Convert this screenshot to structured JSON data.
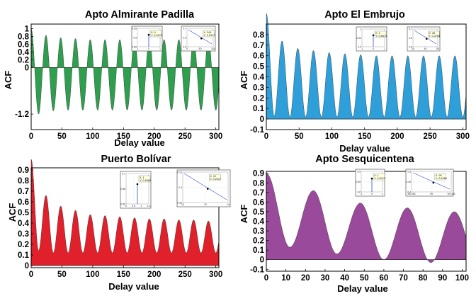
{
  "chart_data": [
    {
      "type": "area",
      "title": "Apto Almirante Padilla",
      "xlabel": "Delay value",
      "ylabel": "ACF",
      "xlim": [
        0,
        305
      ],
      "ylim": [
        -1.6,
        1.12
      ],
      "x_ticks": [
        0,
        50,
        100,
        150,
        200,
        250,
        300
      ],
      "y_ticks": [
        {
          "v": 1,
          "t": "1"
        },
        {
          "v": 0.8,
          "t": "0.8"
        },
        {
          "v": 0.6,
          "t": "0.6"
        },
        {
          "v": 0.4,
          "t": "0.4"
        },
        {
          "v": 0.2,
          "t": "0.2"
        },
        {
          "v": 0,
          "t": "0"
        },
        {
          "v": -1.2,
          "t": "-1.2"
        }
      ],
      "color": "#2f9e4f",
      "period": 24,
      "first_peak": 24,
      "peaks": [
        0.83,
        0.77,
        0.75,
        0.72,
        0.72,
        0.72,
        0.72,
        0.72,
        0.72,
        0.72,
        0.72,
        0.72
      ],
      "troughs": [
        -1.2,
        -1.12,
        -1.1,
        -1.1,
        -1.1,
        -1.1,
        -1.1,
        -1.1,
        -1.1,
        -1.1,
        -1.1,
        -1.1,
        -1.1
      ],
      "insets": [
        {
          "x_ticks": [
            "-1",
            "0",
            "1"
          ],
          "y_ticks": [
            "0.85",
            "0.9",
            "0.95"
          ],
          "label_x": "X: 0",
          "label_y": "Y: 0.9974"
        },
        {
          "x_ticks": [
            "0",
            "50",
            "100"
          ],
          "y_ticks": [
            "0.5",
            "0.6",
            "0.7"
          ],
          "label_x": "X: 349",
          "label_y": "Y: 0.6472"
        }
      ]
    },
    {
      "type": "area",
      "title": "Apto El Embrujo",
      "xlabel": "Delay value",
      "ylabel": "ACF",
      "xlim": [
        0,
        305
      ],
      "ylim": [
        -0.1,
        0.9
      ],
      "x_ticks": [
        0,
        50,
        100,
        150,
        200,
        250,
        300
      ],
      "y_ticks": [
        {
          "v": 0.8,
          "t": "0.8"
        },
        {
          "v": 0.7,
          "t": "0.7"
        },
        {
          "v": 0.6,
          "t": "0.6"
        },
        {
          "v": 0.5,
          "t": "0.5"
        },
        {
          "v": 0.4,
          "t": "0.4"
        },
        {
          "v": 0.3,
          "t": "0.3"
        },
        {
          "v": 0.2,
          "t": "0.2"
        },
        {
          "v": 0.1,
          "t": "0.1"
        },
        {
          "v": 0,
          "t": "0"
        },
        {
          "v": -0.1,
          "t": "-0.1"
        }
      ],
      "color": "#2f9fda",
      "period": 24,
      "first_peak": 24,
      "peaks": [
        0.74,
        0.67,
        0.65,
        0.63,
        0.62,
        0.61,
        0.6,
        0.6,
        0.6,
        0.6,
        0.6,
        0.6
      ],
      "troughs": [
        0.03,
        0.02,
        0.02,
        0.02,
        0.02,
        0.02,
        0.02,
        0.02,
        0.02,
        0.02,
        0.02,
        0.02,
        0.02
      ],
      "insets": [
        {
          "x_ticks": [
            "-1",
            "0",
            "1"
          ],
          "y_ticks": [
            "0.9",
            "0.95",
            "1"
          ],
          "label_x": "X: 1",
          "label_y": "Y: 0.8874"
        },
        {
          "x_ticks": [
            "30",
            "40",
            "50"
          ],
          "y_ticks": [
            "0.5",
            "0.6",
            "0.7"
          ],
          "label_x": "X: 35",
          "label_y": "Y: 0.4768"
        }
      ]
    },
    {
      "type": "area",
      "title": "Puerto Bolívar",
      "xlabel": "Delay value",
      "ylabel": "ACF",
      "xlim": [
        0,
        305
      ],
      "ylim": [
        -0.02,
        0.92
      ],
      "x_ticks": [
        0,
        50,
        100,
        150,
        200,
        250,
        300
      ],
      "y_ticks": [
        {
          "v": 0.9,
          "t": "0.9"
        },
        {
          "v": 0.8,
          "t": "0.8"
        },
        {
          "v": 0.7,
          "t": "0.7"
        },
        {
          "v": 0.6,
          "t": "0.6"
        },
        {
          "v": 0.5,
          "t": "0.5"
        },
        {
          "v": 0.4,
          "t": "0.4"
        },
        {
          "v": 0.3,
          "t": "0.3"
        },
        {
          "v": 0.2,
          "t": "0.2"
        },
        {
          "v": 0.1,
          "t": "0.1"
        },
        {
          "v": 0,
          "t": "0"
        }
      ],
      "color": "#e0202a",
      "period": 24,
      "first_peak": 24,
      "peaks": [
        0.66,
        0.56,
        0.52,
        0.48,
        0.47,
        0.46,
        0.45,
        0.44,
        0.44,
        0.43,
        0.43,
        0.42
      ],
      "troughs": [
        0.14,
        0.12,
        0.12,
        0.12,
        0.12,
        0.12,
        0.12,
        0.12,
        0.12,
        0.12,
        0.12,
        0.12,
        0.12
      ],
      "insets": [
        {
          "x_ticks": [
            "0",
            "0.5",
            "1",
            "1.5"
          ],
          "y_ticks": [
            "0.66",
            "0.68",
            "0.7"
          ],
          "label_x": "X: 1",
          "label_y": "Y: 0.6989"
        },
        {
          "x_ticks": [
            "10",
            "12",
            "14"
          ],
          "y_ticks": [
            "0.29",
            "0.3",
            "0.31"
          ],
          "label_x": "X: 12",
          "label_y": "Y: 0.2927"
        }
      ]
    },
    {
      "type": "area",
      "title": "Apto Sesquicentena",
      "xlabel": "Delay value",
      "ylabel": "ACF",
      "xlim": [
        0,
        102
      ],
      "ylim": [
        -0.12,
        0.92
      ],
      "x_ticks": [
        0,
        10,
        20,
        30,
        40,
        50,
        60,
        70,
        80,
        90,
        100
      ],
      "y_ticks": [
        {
          "v": 0.9,
          "t": "0.9"
        },
        {
          "v": 0.8,
          "t": "0.8"
        },
        {
          "v": 0.7,
          "t": "0.7"
        },
        {
          "v": 0.6,
          "t": "0.6"
        },
        {
          "v": 0.5,
          "t": "0.5"
        },
        {
          "v": 0.4,
          "t": "0.4"
        },
        {
          "v": 0.3,
          "t": "0.3"
        },
        {
          "v": 0.2,
          "t": "0.2"
        },
        {
          "v": 0.1,
          "t": "0.1"
        },
        {
          "v": 0,
          "t": "0"
        },
        {
          "v": -0.1,
          "t": "-0.1"
        }
      ],
      "color": "#9a4a9a",
      "period": 24,
      "first_peak": 24,
      "peaks": [
        0.72,
        0.59,
        0.54,
        0.5
      ],
      "troughs": [
        0.13,
        0.06,
        0.0,
        -0.03
      ],
      "insets": [
        {
          "x_ticks": [
            "-1",
            "0",
            "1"
          ],
          "y_ticks": [
            "0.8",
            "0.85",
            "0.9"
          ],
          "label_x": "X: 1",
          "label_y": "Y: 0.8715"
        },
        {
          "x_ticks": [
            "98.995",
            "99",
            "99.005"
          ],
          "y_ticks": [
            "0.4",
            "0.45",
            "0.5"
          ],
          "label_x": "X: 99",
          "label_y": "Y: 0.4386"
        }
      ]
    }
  ]
}
